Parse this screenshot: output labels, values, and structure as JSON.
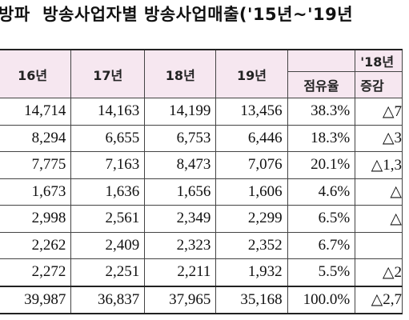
{
  "title": "방송사업자별 방송사업매출('15년~'19년",
  "title_prefix": "방파",
  "header": {
    "years": [
      "16년",
      "17년",
      "18년",
      "19년"
    ],
    "share_label": "점유율",
    "change_group_label": "'18년",
    "change_label": "증감"
  },
  "rows": [
    {
      "y16": "14,714",
      "y17": "14,163",
      "y18": "14,199",
      "y19": "13,456",
      "share": "38.3%",
      "change": "△7"
    },
    {
      "y16": "8,294",
      "y17": "6,655",
      "y18": "6,753",
      "y19": "6,446",
      "share": "18.3%",
      "change": "△3"
    },
    {
      "y16": "7,775",
      "y17": "7,163",
      "y18": "8,473",
      "y19": "7,076",
      "share": "20.1%",
      "change": "△1,3"
    },
    {
      "y16": "1,673",
      "y17": "1,636",
      "y18": "1,656",
      "y19": "1,606",
      "share": "4.6%",
      "change": "△"
    },
    {
      "y16": "2,998",
      "y17": "2,561",
      "y18": "2,349",
      "y19": "2,299",
      "share": "6.5%",
      "change": "△"
    },
    {
      "y16": "2,262",
      "y17": "2,409",
      "y18": "2,323",
      "y19": "2,352",
      "share": "6.7%",
      "change": ""
    },
    {
      "y16": "2,272",
      "y17": "2,251",
      "y18": "2,211",
      "y19": "1,932",
      "share": "5.5%",
      "change": "△2"
    }
  ],
  "total": {
    "y16": "39,987",
    "y17": "36,837",
    "y18": "37,965",
    "y19": "35,168",
    "share": "100.0%",
    "change": "△2,7"
  }
}
